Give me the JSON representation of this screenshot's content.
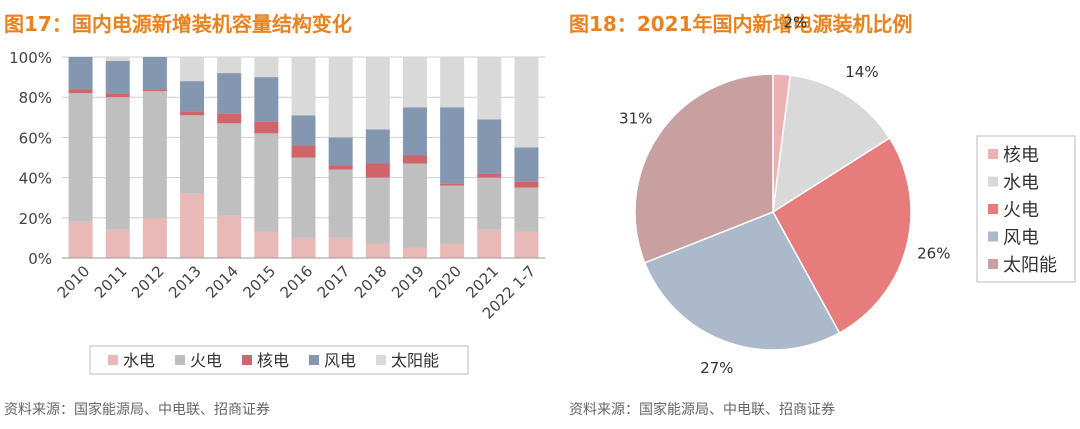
{
  "colors": {
    "hydro": "#E9B9B7",
    "thermal": "#BFBFBF",
    "nuclear": "#D0646B",
    "wind": "#8497B0",
    "solar": "#D9D9D9",
    "pie_nuclear": "#EDB1B3",
    "pie_hydro": "#D9D9D9",
    "pie_thermal": "#E67C7C",
    "pie_wind": "#ACB9CA",
    "pie_solar": "#C8A0A0",
    "title": "#E8821F"
  },
  "left": {
    "title": "图17：国内电源新增装机容量结构变化",
    "source": "资料来源：国家能源局、中电联、招商证券"
  },
  "right": {
    "title": "图18：2021年国内新增电源装机比例",
    "source": "资料来源：国家能源局、中电联、招商证券"
  },
  "chart_data": [
    {
      "type": "bar",
      "stacked": true,
      "percent_stacked": true,
      "categories": [
        "2010",
        "2011",
        "2012",
        "2013",
        "2014",
        "2015",
        "2016",
        "2017",
        "2018",
        "2019",
        "2020",
        "2021",
        "2022 1-7"
      ],
      "y_ticks": [
        "0%",
        "20%",
        "40%",
        "60%",
        "80%",
        "100%"
      ],
      "ylim": [
        0,
        100
      ],
      "legend_position": "bottom",
      "series": [
        {
          "name": "水电",
          "key": "hydro",
          "values": [
            18,
            14,
            20,
            32,
            21,
            13,
            10,
            10,
            7,
            5,
            7,
            14,
            13
          ]
        },
        {
          "name": "火电",
          "key": "thermal",
          "values": [
            64,
            66,
            63,
            39,
            46,
            49,
            40,
            34,
            33,
            42,
            29,
            26,
            22
          ]
        },
        {
          "name": "核电",
          "key": "nuclear",
          "values": [
            2,
            2,
            1,
            2,
            5,
            6,
            6,
            2,
            7,
            4,
            1,
            2,
            3
          ]
        },
        {
          "name": "风电",
          "key": "wind",
          "values": [
            16,
            16,
            16,
            15,
            20,
            22,
            15,
            14,
            17,
            24,
            38,
            27,
            17
          ]
        },
        {
          "name": "太阳能",
          "key": "solar",
          "values": [
            0,
            2,
            0,
            12,
            8,
            10,
            29,
            40,
            36,
            25,
            25,
            31,
            45
          ]
        }
      ]
    },
    {
      "type": "pie",
      "legend_position": "right",
      "slices": [
        {
          "name": "核电",
          "key": "pie_nuclear",
          "value": 2,
          "label": "2%"
        },
        {
          "name": "水电",
          "key": "pie_hydro",
          "value": 14,
          "label": "14%"
        },
        {
          "name": "火电",
          "key": "pie_thermal",
          "value": 26,
          "label": "26%"
        },
        {
          "name": "风电",
          "key": "pie_wind",
          "value": 27,
          "label": "27%"
        },
        {
          "name": "太阳能",
          "key": "pie_solar",
          "value": 31,
          "label": "31%"
        }
      ]
    }
  ]
}
